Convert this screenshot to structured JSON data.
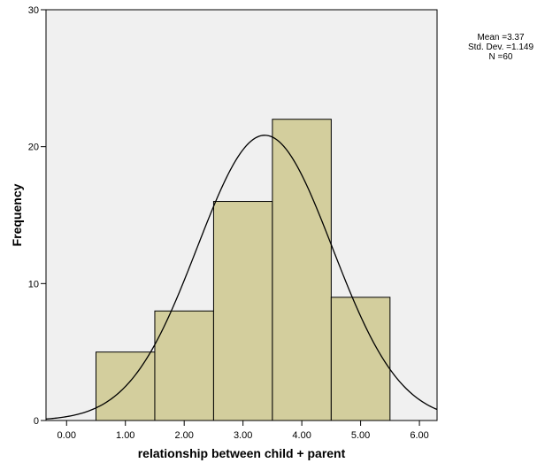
{
  "chart_data": {
    "type": "bar",
    "subtype": "histogram",
    "title": "",
    "xlabel": "relationship between child + parent",
    "ylabel": "Frequency",
    "xlim": [
      -0.35,
      6.3
    ],
    "ylim": [
      0,
      30
    ],
    "x_ticks": [
      0,
      1,
      2,
      3,
      4,
      5,
      6
    ],
    "x_tick_labels": [
      "0.00",
      "1.00",
      "2.00",
      "3.00",
      "4.00",
      "5.00",
      "6.00"
    ],
    "y_ticks": [
      0,
      10,
      20,
      30
    ],
    "y_tick_labels": [
      "0",
      "10",
      "20",
      "30"
    ],
    "bins": [
      {
        "x0": 0.5,
        "x1": 1.5,
        "count": 5
      },
      {
        "x0": 1.5,
        "x1": 2.5,
        "count": 8
      },
      {
        "x0": 2.5,
        "x1": 3.5,
        "count": 16
      },
      {
        "x0": 3.5,
        "x1": 4.5,
        "count": 22
      },
      {
        "x0": 4.5,
        "x1": 5.5,
        "count": 9
      }
    ],
    "normal_curve": {
      "mean": 3.37,
      "std": 1.149,
      "n": 60,
      "bin_width": 1
    },
    "stats_lines": [
      "Mean =3.37",
      "Std. Dev. =1.149",
      "N =60"
    ],
    "grid": false,
    "colors": {
      "plot_background": "#f0f0f0",
      "bar_fill": "#d3ce9d",
      "bar_stroke": "#000000",
      "curve": "#000000"
    }
  }
}
